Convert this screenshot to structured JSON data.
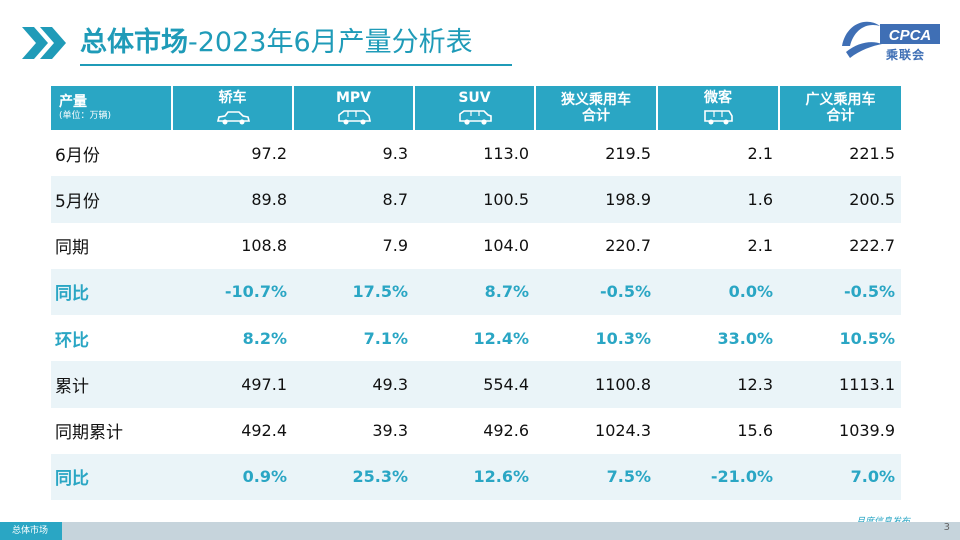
{
  "title": {
    "main": "总体市场",
    "rest": "-2023年6月产量分析表"
  },
  "logo": {
    "text": "CPCA",
    "cn": "乘联会"
  },
  "header": {
    "first": {
      "main": "产量",
      "sub": "(单位：万辆)"
    },
    "cols": [
      {
        "lines": [
          "轿车"
        ],
        "icon": "sedan-icon"
      },
      {
        "lines": [
          "MPV"
        ],
        "icon": "mpv-icon"
      },
      {
        "lines": [
          "SUV"
        ],
        "icon": "suv-icon"
      },
      {
        "lines": [
          "狭义乘用车",
          "合计"
        ],
        "icon": ""
      },
      {
        "lines": [
          "微客"
        ],
        "icon": "minivan-icon"
      },
      {
        "lines": [
          "广义乘用车",
          "合计"
        ],
        "icon": ""
      }
    ]
  },
  "rows": [
    {
      "label": "6月份",
      "type": "value",
      "values": [
        "97.2",
        "9.3",
        "113.0",
        "219.5",
        "2.1",
        "221.5"
      ]
    },
    {
      "label": "5月份",
      "type": "value",
      "values": [
        "89.8",
        "8.7",
        "100.5",
        "198.9",
        "1.6",
        "200.5"
      ]
    },
    {
      "label": "同期",
      "type": "value",
      "values": [
        "108.8",
        "7.9",
        "104.0",
        "220.7",
        "2.1",
        "222.7"
      ]
    },
    {
      "label": "同比",
      "type": "pct",
      "values": [
        "-10.7%",
        "17.5%",
        "8.7%",
        "-0.5%",
        "0.0%",
        "-0.5%"
      ]
    },
    {
      "label": "环比",
      "type": "pct",
      "values": [
        "8.2%",
        "7.1%",
        "12.4%",
        "10.3%",
        "33.0%",
        "10.5%"
      ]
    },
    {
      "label": "累计",
      "type": "value",
      "values": [
        "497.1",
        "49.3",
        "554.4",
        "1100.8",
        "12.3",
        "1113.1"
      ]
    },
    {
      "label": "同期累计",
      "type": "value",
      "values": [
        "492.4",
        "39.3",
        "492.6",
        "1024.3",
        "15.6",
        "1039.9"
      ]
    },
    {
      "label": "同比",
      "type": "pct",
      "values": [
        "0.9%",
        "25.3%",
        "12.6%",
        "7.5%",
        "-21.0%",
        "7.0%"
      ]
    }
  ],
  "footer": {
    "tabs": [
      "总体市场",
      "",
      "",
      ""
    ],
    "right_text": "月度信息发布",
    "page_no": "3"
  },
  "colors": {
    "accent": "#2aa6c4",
    "row_alt": "#eaf4f8"
  }
}
